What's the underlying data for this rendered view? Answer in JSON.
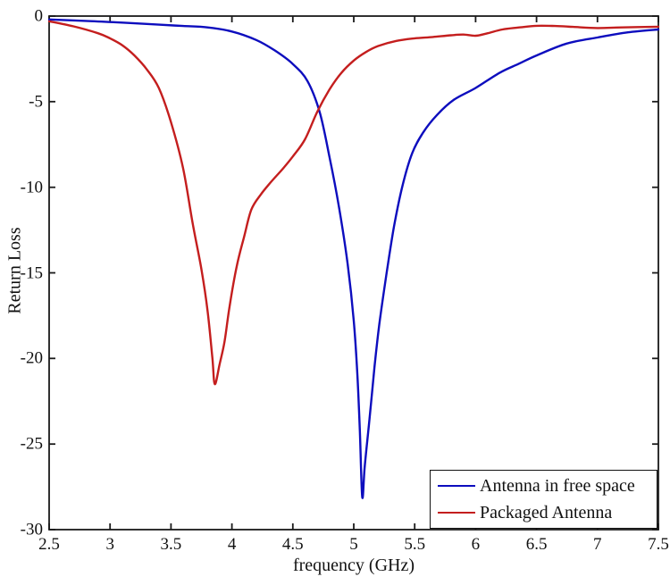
{
  "figure": {
    "background": "#ffffff",
    "axis_color": "#1a1a1a",
    "text_color": "#111111"
  },
  "chart_data": {
    "type": "line",
    "title": "",
    "xlabel": "frequency (GHz)",
    "ylabel": "Return Loss",
    "xlim": [
      2.5,
      7.5
    ],
    "ylim": [
      -30,
      0
    ],
    "x_tick_values": [
      2.5,
      3,
      3.5,
      4,
      4.5,
      5,
      5.5,
      6,
      6.5,
      7,
      7.5
    ],
    "x_tick_labels": [
      "2.5",
      "3",
      "3.5",
      "4",
      "4.5",
      "5",
      "5.5",
      "6",
      "6.5",
      "7",
      "7.5"
    ],
    "y_tick_values": [
      0,
      -5,
      -10,
      -15,
      -20,
      -25,
      -30
    ],
    "y_tick_labels": [
      "0",
      "-5",
      "-10",
      "-15",
      "-20",
      "-25",
      "-30"
    ],
    "grid": false,
    "box": true,
    "legend_position": "lower-right",
    "series": [
      {
        "name": "Antenna in free space",
        "color": "#0d0dbe",
        "line_width": 2.4,
        "resonance_freq_ghz": 5.07,
        "min_return_loss_db": -28.1,
        "points": [
          [
            2.5,
            -0.2
          ],
          [
            2.8,
            -0.28
          ],
          [
            3.1,
            -0.38
          ],
          [
            3.4,
            -0.5
          ],
          [
            3.6,
            -0.58
          ],
          [
            3.8,
            -0.66
          ],
          [
            4.0,
            -0.9
          ],
          [
            4.2,
            -1.4
          ],
          [
            4.35,
            -2.0
          ],
          [
            4.5,
            -2.8
          ],
          [
            4.62,
            -3.8
          ],
          [
            4.72,
            -5.6
          ],
          [
            4.8,
            -8.2
          ],
          [
            4.88,
            -11.2
          ],
          [
            4.95,
            -14.5
          ],
          [
            5.0,
            -17.8
          ],
          [
            5.03,
            -21.0
          ],
          [
            5.05,
            -24.2
          ],
          [
            5.07,
            -28.1
          ],
          [
            5.09,
            -26.3
          ],
          [
            5.13,
            -23.5
          ],
          [
            5.17,
            -20.5
          ],
          [
            5.21,
            -18.0
          ],
          [
            5.27,
            -15.0
          ],
          [
            5.33,
            -12.3
          ],
          [
            5.4,
            -9.9
          ],
          [
            5.48,
            -8.0
          ],
          [
            5.57,
            -6.8
          ],
          [
            5.68,
            -5.8
          ],
          [
            5.82,
            -4.9
          ],
          [
            6.0,
            -4.2
          ],
          [
            6.2,
            -3.3
          ],
          [
            6.35,
            -2.8
          ],
          [
            6.5,
            -2.3
          ],
          [
            6.75,
            -1.6
          ],
          [
            7.0,
            -1.25
          ],
          [
            7.25,
            -0.95
          ],
          [
            7.5,
            -0.78
          ]
        ]
      },
      {
        "name": "Packaged Antenna",
        "color": "#c41e1e",
        "line_width": 2.4,
        "resonance_freq_ghz": 3.86,
        "min_return_loss_db": -21.5,
        "points": [
          [
            2.5,
            -0.3
          ],
          [
            2.7,
            -0.6
          ],
          [
            2.9,
            -1.0
          ],
          [
            3.0,
            -1.3
          ],
          [
            3.1,
            -1.7
          ],
          [
            3.2,
            -2.3
          ],
          [
            3.3,
            -3.1
          ],
          [
            3.4,
            -4.2
          ],
          [
            3.5,
            -6.2
          ],
          [
            3.6,
            -8.9
          ],
          [
            3.68,
            -12.2
          ],
          [
            3.75,
            -14.8
          ],
          [
            3.8,
            -17.2
          ],
          [
            3.84,
            -20.0
          ],
          [
            3.86,
            -21.5
          ],
          [
            3.9,
            -20.3
          ],
          [
            3.94,
            -19.0
          ],
          [
            3.98,
            -17.0
          ],
          [
            4.04,
            -14.6
          ],
          [
            4.1,
            -12.9
          ],
          [
            4.16,
            -11.3
          ],
          [
            4.24,
            -10.4
          ],
          [
            4.32,
            -9.7
          ],
          [
            4.42,
            -8.9
          ],
          [
            4.5,
            -8.2
          ],
          [
            4.6,
            -7.2
          ],
          [
            4.7,
            -5.6
          ],
          [
            4.8,
            -4.3
          ],
          [
            4.9,
            -3.3
          ],
          [
            5.0,
            -2.6
          ],
          [
            5.1,
            -2.1
          ],
          [
            5.2,
            -1.75
          ],
          [
            5.35,
            -1.45
          ],
          [
            5.5,
            -1.3
          ],
          [
            5.65,
            -1.22
          ],
          [
            5.8,
            -1.12
          ],
          [
            5.9,
            -1.08
          ],
          [
            6.0,
            -1.15
          ],
          [
            6.1,
            -1.0
          ],
          [
            6.22,
            -0.78
          ],
          [
            6.35,
            -0.67
          ],
          [
            6.5,
            -0.57
          ],
          [
            6.65,
            -0.58
          ],
          [
            6.8,
            -0.63
          ],
          [
            7.0,
            -0.7
          ],
          [
            7.2,
            -0.66
          ],
          [
            7.5,
            -0.62
          ]
        ]
      }
    ]
  }
}
